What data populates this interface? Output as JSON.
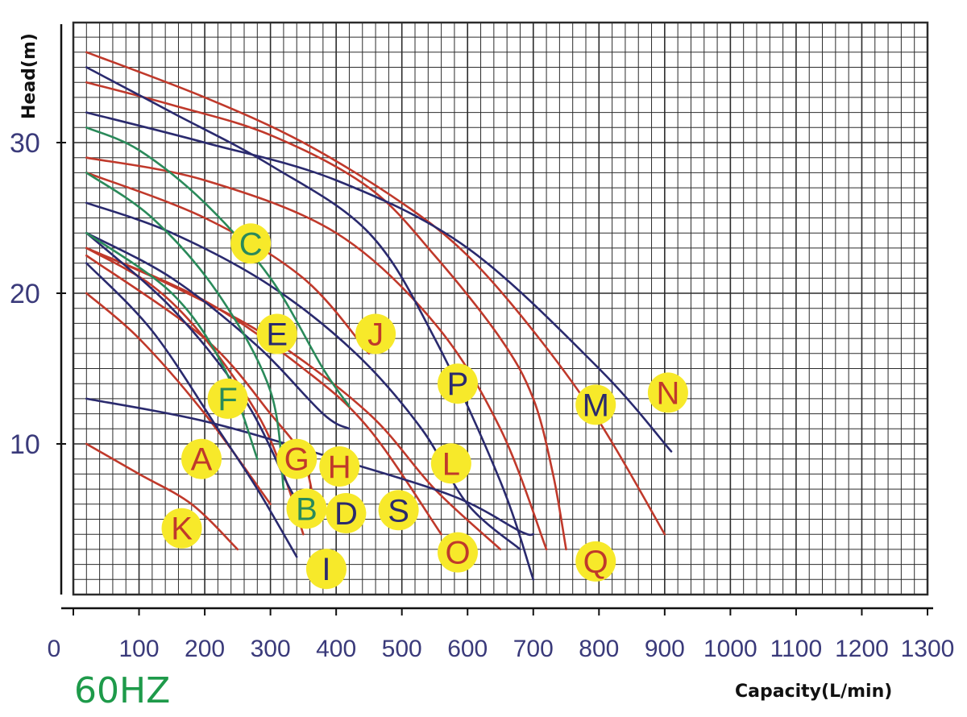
{
  "colors": {
    "red": "#c0392b",
    "navy": "#2a2a6e",
    "green": "#2a8a5a",
    "grid": "#2b2b2b",
    "marker_fill": "#f7e92a",
    "tick_text": "#3a3a7a",
    "freq_text": "#1e9a4a"
  },
  "chart_data": {
    "type": "line",
    "title": "",
    "xlabel": "Capacity(L/min)",
    "ylabel": "Head(m)",
    "frequency_label": "60HZ",
    "xlim": [
      0,
      1300
    ],
    "ylim": [
      0,
      38
    ],
    "x_ticks": [
      "0",
      "100",
      "200",
      "300",
      "400",
      "500",
      "600",
      "700",
      "800",
      "900",
      "1000",
      "1100",
      "1200",
      "1300"
    ],
    "y_ticks": [
      "10",
      "20",
      "30"
    ],
    "grid": true,
    "curves": [
      {
        "color": "red",
        "points": [
          [
            20,
            36
          ],
          [
            200,
            33
          ],
          [
            350,
            30
          ],
          [
            500,
            26
          ],
          [
            600,
            22.5
          ],
          [
            700,
            17.5
          ],
          [
            800,
            11.5
          ],
          [
            900,
            4
          ]
        ]
      },
      {
        "color": "red",
        "points": [
          [
            20,
            34
          ],
          [
            150,
            32.5
          ],
          [
            300,
            30.5
          ],
          [
            450,
            27
          ],
          [
            550,
            22.5
          ],
          [
            650,
            17
          ],
          [
            700,
            13
          ],
          [
            730,
            8
          ],
          [
            750,
            3
          ]
        ]
      },
      {
        "color": "red",
        "points": [
          [
            20,
            29
          ],
          [
            200,
            27.5
          ],
          [
            400,
            24
          ],
          [
            550,
            18
          ],
          [
            650,
            11
          ],
          [
            720,
            3
          ]
        ]
      },
      {
        "color": "red",
        "points": [
          [
            20,
            28
          ],
          [
            200,
            25
          ],
          [
            350,
            21
          ],
          [
            450,
            16
          ]
        ]
      },
      {
        "color": "red",
        "points": [
          [
            20,
            23
          ],
          [
            120,
            20.5
          ],
          [
            200,
            17
          ],
          [
            280,
            12
          ],
          [
            320,
            8
          ],
          [
            350,
            4
          ]
        ]
      },
      {
        "color": "red",
        "points": [
          [
            20,
            23
          ],
          [
            200,
            19.5
          ],
          [
            350,
            15
          ],
          [
            450,
            11
          ],
          [
            560,
            4
          ]
        ]
      },
      {
        "color": "red",
        "points": [
          [
            20,
            22.5
          ],
          [
            200,
            17
          ],
          [
            300,
            12
          ],
          [
            350,
            9
          ],
          [
            370,
            5
          ]
        ]
      },
      {
        "color": "red",
        "points": [
          [
            20,
            20
          ],
          [
            100,
            17
          ],
          [
            200,
            12
          ],
          [
            300,
            6
          ]
        ]
      },
      {
        "color": "red",
        "points": [
          [
            20,
            23
          ],
          [
            150,
            20.5
          ],
          [
            300,
            17
          ],
          [
            450,
            12
          ],
          [
            550,
            7
          ],
          [
            650,
            3
          ]
        ]
      },
      {
        "color": "red",
        "points": [
          [
            20,
            10
          ],
          [
            100,
            8
          ],
          [
            180,
            6
          ],
          [
            250,
            3
          ]
        ]
      },
      {
        "color": "navy",
        "points": [
          [
            20,
            35
          ],
          [
            150,
            32
          ],
          [
            300,
            28.5
          ],
          [
            450,
            24
          ],
          [
            550,
            17
          ],
          [
            650,
            7.5
          ],
          [
            700,
            1
          ]
        ]
      },
      {
        "color": "navy",
        "points": [
          [
            20,
            32
          ],
          [
            200,
            30
          ],
          [
            400,
            27.5
          ],
          [
            600,
            23
          ],
          [
            800,
            15
          ],
          [
            910,
            9.5
          ]
        ]
      },
      {
        "color": "navy",
        "points": [
          [
            20,
            26
          ],
          [
            150,
            24
          ],
          [
            300,
            20.5
          ],
          [
            430,
            16
          ],
          [
            530,
            11
          ],
          [
            600,
            6
          ],
          [
            680,
            3
          ]
        ]
      },
      {
        "color": "navy",
        "points": [
          [
            20,
            24
          ],
          [
            150,
            21
          ],
          [
            280,
            16.5
          ],
          [
            380,
            12
          ],
          [
            420,
            11
          ]
        ]
      },
      {
        "color": "navy",
        "points": [
          [
            20,
            24
          ],
          [
            150,
            19
          ],
          [
            260,
            13
          ],
          [
            330,
            7
          ],
          [
            360,
            5
          ]
        ]
      },
      {
        "color": "navy",
        "points": [
          [
            20,
            22
          ],
          [
            120,
            17.5
          ],
          [
            220,
            11
          ],
          [
            280,
            7
          ],
          [
            340,
            2.5
          ]
        ]
      },
      {
        "color": "navy",
        "points": [
          [
            20,
            13
          ],
          [
            200,
            11.5
          ],
          [
            400,
            9
          ],
          [
            580,
            6.5
          ],
          [
            680,
            4.2
          ],
          [
            700,
            4
          ]
        ]
      },
      {
        "color": "green",
        "points": [
          [
            20,
            31
          ],
          [
            100,
            29.5
          ],
          [
            200,
            26
          ],
          [
            300,
            21
          ],
          [
            380,
            15
          ],
          [
            420,
            12.5
          ]
        ]
      },
      {
        "color": "green",
        "points": [
          [
            20,
            28
          ],
          [
            120,
            25
          ],
          [
            220,
            20
          ],
          [
            300,
            13.5
          ],
          [
            320,
            7
          ]
        ]
      },
      {
        "color": "green",
        "points": [
          [
            20,
            24
          ],
          [
            150,
            20
          ],
          [
            230,
            15
          ],
          [
            280,
            9
          ]
        ]
      }
    ],
    "labels": [
      {
        "text": "C",
        "x": 270,
        "y": 23.3,
        "color": "green"
      },
      {
        "text": "E",
        "x": 310,
        "y": 17.3,
        "color": "navy"
      },
      {
        "text": "J",
        "x": 460,
        "y": 17.3,
        "color": "red"
      },
      {
        "text": "P",
        "x": 585,
        "y": 14,
        "color": "navy"
      },
      {
        "text": "M",
        "x": 795,
        "y": 12.6,
        "color": "navy"
      },
      {
        "text": "N",
        "x": 905,
        "y": 13.4,
        "color": "red"
      },
      {
        "text": "F",
        "x": 235,
        "y": 13,
        "color": "green"
      },
      {
        "text": "A",
        "x": 195,
        "y": 9,
        "color": "red"
      },
      {
        "text": "G",
        "x": 340,
        "y": 9,
        "color": "red"
      },
      {
        "text": "H",
        "x": 405,
        "y": 8.5,
        "color": "red"
      },
      {
        "text": "L",
        "x": 575,
        "y": 8.7,
        "color": "red"
      },
      {
        "text": "B",
        "x": 355,
        "y": 5.7,
        "color": "green"
      },
      {
        "text": "D",
        "x": 415,
        "y": 5.4,
        "color": "navy"
      },
      {
        "text": "S",
        "x": 495,
        "y": 5.6,
        "color": "navy"
      },
      {
        "text": "K",
        "x": 165,
        "y": 4.4,
        "color": "red"
      },
      {
        "text": "O",
        "x": 585,
        "y": 2.8,
        "color": "red"
      },
      {
        "text": "Q",
        "x": 795,
        "y": 2.2,
        "color": "red"
      },
      {
        "text": "I",
        "x": 385,
        "y": 1.7,
        "color": "navy"
      }
    ]
  }
}
